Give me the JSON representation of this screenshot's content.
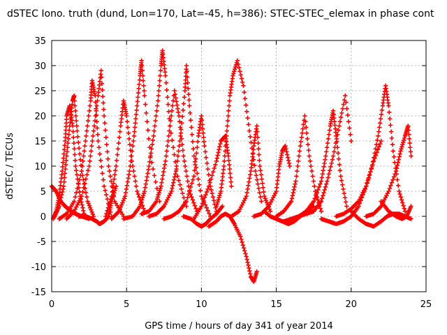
{
  "chart_data": {
    "type": "scatter",
    "title": "dSTEC Iono. truth (dund, Lon=170, Lat=-45, h=386): STEC-STEC_elemax in phase cont",
    "xlabel": "GPS time / hours of day 341 of year 2014",
    "ylabel": "dSTEC  / TECUs",
    "xlim": [
      0,
      25
    ],
    "ylim": [
      -15,
      35
    ],
    "xticks": [
      0,
      5,
      10,
      15,
      20,
      25
    ],
    "yticks": [
      -15,
      -10,
      -5,
      0,
      5,
      10,
      15,
      20,
      25,
      30,
      35
    ],
    "grid": true,
    "marker": "+",
    "color": "#ff0000",
    "series": [
      {
        "x": [
          0.0,
          0.3,
          0.6,
          0.9,
          1.1,
          1.3,
          1.6,
          2.0,
          2.5
        ],
        "y": [
          6,
          5,
          3,
          2,
          1.5,
          1,
          0.5,
          0,
          -0.5
        ]
      },
      {
        "x": [
          0.1,
          0.3,
          0.5,
          0.7,
          0.9,
          1.0,
          1.2,
          1.4,
          1.6,
          1.9,
          2.2
        ],
        "y": [
          -0.5,
          1,
          4,
          9,
          15,
          20,
          22,
          18,
          10,
          4,
          0
        ]
      },
      {
        "x": [
          0.2,
          0.5,
          0.8,
          1.0,
          1.2,
          1.4,
          1.5,
          1.7,
          2.0,
          2.4,
          2.8
        ],
        "y": [
          0,
          2,
          6,
          12,
          18,
          23,
          24,
          17,
          9,
          3,
          0
        ]
      },
      {
        "x": [
          0.5,
          1.0,
          1.5,
          2.0,
          2.3,
          2.6,
          2.7,
          2.9,
          3.1,
          3.5,
          4.0
        ],
        "y": [
          -0.5,
          0.5,
          3,
          9,
          16,
          23,
          27,
          24,
          15,
          6,
          0
        ]
      },
      {
        "x": [
          1.0,
          1.5,
          2.0,
          2.5,
          2.8,
          3.1,
          3.3,
          3.5,
          3.8,
          4.2,
          4.8
        ],
        "y": [
          -0.5,
          1,
          4,
          10,
          17,
          24,
          29,
          20,
          10,
          3,
          0
        ]
      },
      {
        "x": [
          1.8,
          2.3,
          2.7,
          3.0,
          3.2,
          3.5,
          3.8,
          4.0,
          4.3
        ],
        "y": [
          0,
          0,
          -0.5,
          -1,
          -1.5,
          -1,
          0,
          3,
          6
        ]
      },
      {
        "x": [
          3.6,
          4.0,
          4.3,
          4.6,
          4.8,
          5.0,
          5.3,
          5.7,
          6.2
        ],
        "y": [
          0,
          4,
          10,
          18,
          23,
          20,
          12,
          5,
          1
        ]
      },
      {
        "x": [
          4.0,
          4.5,
          4.9,
          5.2,
          5.5,
          5.7,
          5.9,
          6.0,
          6.2,
          6.6,
          7.2
        ],
        "y": [
          -0.5,
          1,
          4,
          9,
          16,
          22,
          28,
          31,
          24,
          12,
          3
        ]
      },
      {
        "x": [
          4.8,
          5.4,
          5.9,
          6.2,
          6.5,
          6.8,
          7.1,
          7.3,
          7.4,
          7.6,
          7.9,
          8.4,
          9.0
        ],
        "y": [
          -0.5,
          0,
          2,
          5,
          10,
          16,
          23,
          30,
          33,
          28,
          18,
          8,
          2
        ]
      },
      {
        "x": [
          6.0,
          6.5,
          7.0,
          7.3,
          7.6,
          7.9,
          8.2,
          8.5,
          8.8,
          9.2,
          9.7
        ],
        "y": [
          0.5,
          1,
          3,
          6,
          11,
          18,
          25,
          20,
          12,
          5,
          1
        ]
      },
      {
        "x": [
          6.5,
          7.0,
          7.5,
          8.0,
          8.3,
          8.6,
          8.9,
          9.0,
          9.2,
          9.5,
          10.0,
          10.6
        ],
        "y": [
          0,
          0.5,
          2,
          5,
          9,
          16,
          25,
          30,
          22,
          12,
          4,
          0
        ]
      },
      {
        "x": [
          7.5,
          8.0,
          8.5,
          9.0,
          9.5,
          9.8,
          10.0,
          10.2,
          10.6,
          11.0
        ],
        "y": [
          -0.5,
          0,
          1,
          3,
          8,
          16,
          20,
          14,
          6,
          1
        ]
      },
      {
        "x": [
          8.8,
          9.3,
          9.7,
          10.0,
          10.3,
          10.6,
          11.0,
          11.4
        ],
        "y": [
          0,
          -0.5,
          -1.5,
          -2,
          -1.5,
          -0.5,
          0.5,
          2
        ]
      },
      {
        "x": [
          9.5,
          10.0,
          10.5,
          11.0,
          11.3,
          11.6,
          11.8,
          12.0
        ],
        "y": [
          -0.5,
          2,
          6,
          11,
          15,
          16,
          12,
          6
        ]
      },
      {
        "x": [
          10.5,
          11.0,
          11.3,
          11.6,
          11.9,
          12.2,
          12.6,
          13.0,
          13.3,
          13.5,
          13.7
        ],
        "y": [
          -2,
          -1,
          0,
          0.5,
          0,
          -1.5,
          -4,
          -8,
          -12,
          -13,
          -11
        ]
      },
      {
        "x": [
          11.0,
          11.3,
          11.5,
          11.7,
          11.9,
          12.1,
          12.4,
          12.8,
          13.2,
          13.6,
          14.0
        ],
        "y": [
          2,
          5,
          10,
          17,
          24,
          28,
          31,
          26,
          17,
          9,
          3
        ]
      },
      {
        "x": [
          12.0,
          12.5,
          13.0,
          13.3,
          13.5,
          13.7,
          13.9,
          14.2,
          14.6
        ],
        "y": [
          0,
          1,
          4,
          9,
          14,
          18,
          10,
          4,
          1
        ]
      },
      {
        "x": [
          13.5,
          14.0,
          14.5,
          15.0,
          15.2,
          15.4,
          15.6,
          15.9
        ],
        "y": [
          0,
          0.5,
          2,
          5,
          10,
          13,
          14,
          10
        ]
      },
      {
        "x": [
          14.2,
          14.6,
          15.0,
          15.4,
          15.8,
          16.2,
          16.6,
          17.0,
          17.5
        ],
        "y": [
          1,
          0,
          -0.5,
          -1,
          -1.5,
          -1,
          0,
          1,
          2
        ]
      },
      {
        "x": [
          15.0,
          15.5,
          16.0,
          16.3,
          16.6,
          16.9,
          17.2,
          17.6,
          18.0
        ],
        "y": [
          0,
          1,
          3,
          7,
          14,
          20,
          12,
          5,
          1
        ]
      },
      {
        "x": [
          15.5,
          16.0,
          16.5,
          17.0,
          17.5,
          18.0,
          18.4,
          18.8,
          19.2,
          19.6,
          20.0
        ],
        "y": [
          -1,
          -0.5,
          0,
          0.5,
          1,
          3,
          7,
          12,
          18,
          24,
          15
        ]
      },
      {
        "x": [
          16.5,
          17.0,
          17.5,
          18.0,
          18.3,
          18.6,
          18.8,
          19.0,
          19.3,
          19.7
        ],
        "y": [
          0,
          1,
          3,
          7,
          12,
          18,
          21,
          16,
          8,
          2
        ]
      },
      {
        "x": [
          18.0,
          18.5,
          19.0,
          19.5,
          20.0,
          20.5,
          21.0,
          21.5,
          22.0
        ],
        "y": [
          -0.5,
          -1,
          -1.5,
          -1,
          0,
          2,
          6,
          11,
          15
        ]
      },
      {
        "x": [
          19.0,
          19.5,
          20.0,
          20.5,
          21.0,
          21.4,
          21.8,
          22.1,
          22.3,
          22.5,
          22.8,
          23.2,
          23.6
        ],
        "y": [
          0,
          0.5,
          1.5,
          3,
          6,
          10,
          16,
          22,
          26,
          22,
          13,
          5,
          1
        ]
      },
      {
        "x": [
          20.0,
          20.5,
          21.0,
          21.5,
          22.0,
          22.4,
          22.8,
          23.2,
          23.6,
          24.0
        ],
        "y": [
          1,
          -0.5,
          -1.5,
          -2,
          -1,
          0,
          0.5,
          0.5,
          0,
          -0.5
        ]
      },
      {
        "x": [
          21.0,
          21.5,
          22.0,
          22.5,
          23.0,
          23.3,
          23.6,
          23.8,
          24.0
        ],
        "y": [
          0,
          0.5,
          2,
          5,
          9,
          13,
          16,
          18,
          12
        ]
      },
      {
        "x": [
          22.0,
          22.5,
          23.0,
          23.4,
          23.7,
          24.0
        ],
        "y": [
          3,
          1,
          0,
          -0.5,
          0,
          2
        ]
      }
    ]
  }
}
